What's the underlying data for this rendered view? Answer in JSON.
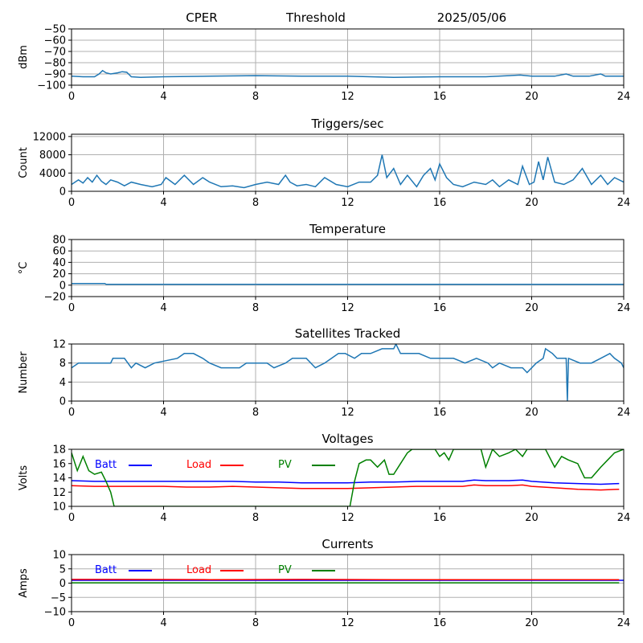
{
  "header": {
    "site": "CPER",
    "mode": "Threshold",
    "date": "2025/05/06"
  },
  "colors": {
    "series": "#1f77b4",
    "batt": "#0000ff",
    "load": "#ff0000",
    "pv": "#008000",
    "grid": "#b0b0b0"
  },
  "chart_data": [
    {
      "type": "line",
      "title": "",
      "ylabel": "dBm",
      "xlim": [
        0,
        24
      ],
      "ylim": [
        -100,
        -50
      ],
      "xticks": [
        0,
        4,
        8,
        12,
        16,
        20,
        24
      ],
      "yticks": [
        -100,
        -90,
        -80,
        -70,
        -60,
        -50
      ],
      "grid": true,
      "series": [
        {
          "x": [
            0,
            0.5,
            1.0,
            1.2,
            1.35,
            1.5,
            1.7,
            2.0,
            2.2,
            2.4,
            2.6,
            3,
            4,
            6,
            8,
            10,
            12,
            13,
            14,
            16,
            18,
            19.5,
            20,
            21,
            21.5,
            21.8,
            22.5,
            23,
            23.2,
            24
          ],
          "y": [
            -92,
            -92.5,
            -92.5,
            -90,
            -87,
            -89,
            -90,
            -89,
            -88,
            -88.5,
            -92.5,
            -93,
            -92.5,
            -92,
            -91.5,
            -92,
            -92,
            -92.5,
            -93,
            -92.5,
            -92.5,
            -91,
            -92,
            -92,
            -90,
            -92,
            -92,
            -90,
            -92,
            -92
          ]
        }
      ]
    },
    {
      "type": "line",
      "title": "Triggers/sec",
      "ylabel": "Count",
      "xlim": [
        0,
        24
      ],
      "ylim": [
        0,
        12500
      ],
      "xticks": [
        0,
        4,
        8,
        12,
        16,
        20,
        24
      ],
      "yticks": [
        0,
        4000,
        8000,
        12000
      ],
      "grid": true,
      "series": [
        {
          "x": [
            0,
            0.3,
            0.5,
            0.7,
            0.9,
            1.1,
            1.3,
            1.5,
            1.7,
            2,
            2.3,
            2.6,
            3,
            3.5,
            3.9,
            4.1,
            4.5,
            4.9,
            5.3,
            5.7,
            6,
            6.5,
            7,
            7.5,
            8,
            8.5,
            9,
            9.3,
            9.5,
            9.8,
            10.2,
            10.6,
            11,
            11.5,
            12,
            12.5,
            13,
            13.3,
            13.5,
            13.7,
            14,
            14.3,
            14.6,
            15,
            15.3,
            15.6,
            15.8,
            16,
            16.3,
            16.6,
            17,
            17.5,
            18,
            18.3,
            18.6,
            19,
            19.4,
            19.6,
            19.9,
            20.1,
            20.3,
            20.5,
            20.7,
            21,
            21.4,
            21.8,
            22.2,
            22.6,
            23,
            23.3,
            23.6,
            24
          ],
          "y": [
            1500,
            2500,
            1800,
            3000,
            2000,
            3500,
            2200,
            1500,
            2500,
            2000,
            1200,
            2000,
            1500,
            1000,
            1500,
            3000,
            1500,
            3500,
            1500,
            3000,
            2000,
            1000,
            1200,
            800,
            1500,
            2000,
            1500,
            3500,
            2000,
            1200,
            1500,
            1000,
            3000,
            1500,
            1000,
            2000,
            2000,
            3500,
            8000,
            3000,
            5000,
            1500,
            3500,
            1000,
            3500,
            5000,
            2500,
            6000,
            3000,
            1500,
            1000,
            2000,
            1500,
            2500,
            1000,
            2500,
            1500,
            5500,
            1500,
            2000,
            6500,
            2500,
            7500,
            2000,
            1500,
            2500,
            5000,
            1500,
            3500,
            1500,
            3000,
            2000
          ]
        }
      ]
    },
    {
      "type": "line",
      "title": "Temperature",
      "ylabel": "°C",
      "xlim": [
        0,
        24
      ],
      "ylim": [
        -20,
        80
      ],
      "xticks": [
        0,
        4,
        8,
        12,
        16,
        20,
        24
      ],
      "yticks": [
        -20,
        0,
        20,
        40,
        60,
        80
      ],
      "grid": true,
      "series": [
        {
          "x": [
            0,
            1.45,
            1.5,
            24
          ],
          "y": [
            3,
            3,
            1.5,
            1.5
          ]
        }
      ]
    },
    {
      "type": "line",
      "title": "Satellites Tracked",
      "ylabel": "Number",
      "xlim": [
        0,
        24
      ],
      "ylim": [
        0,
        12
      ],
      "xticks": [
        0,
        4,
        8,
        12,
        16,
        20,
        24
      ],
      "yticks": [
        0,
        4,
        8,
        12
      ],
      "grid": true,
      "series": [
        {
          "x": [
            0,
            0.3,
            1.3,
            1.7,
            1.8,
            2.3,
            2.6,
            2.8,
            3.2,
            3.6,
            4.6,
            4.9,
            5.3,
            5.7,
            6.0,
            6.5,
            7.0,
            7.3,
            7.6,
            8.2,
            8.5,
            8.8,
            9.3,
            9.6,
            10.2,
            10.6,
            11,
            11.3,
            11.6,
            11.9,
            12.3,
            12.6,
            13.0,
            13.5,
            14.0,
            14.1,
            14.3,
            14.6,
            15.1,
            15.6,
            16.1,
            16.6,
            17.1,
            17.6,
            18.1,
            18.3,
            18.6,
            19.1,
            19.6,
            19.8,
            20.2,
            20.5,
            20.6,
            20.9,
            21.1,
            21.5,
            21.55,
            21.6,
            22.1,
            22.6,
            23.0,
            23.4,
            23.6,
            23.9,
            24
          ],
          "y": [
            7,
            8,
            8,
            8,
            9,
            9,
            7,
            8,
            7,
            8,
            9,
            10,
            10,
            9,
            8,
            7,
            7,
            7,
            8,
            8,
            8,
            7,
            8,
            9,
            9,
            7,
            8,
            9,
            10,
            10,
            9,
            10,
            10,
            11,
            11,
            12,
            10,
            10,
            10,
            9,
            9,
            9,
            8,
            9,
            8,
            7,
            8,
            7,
            7,
            6,
            8,
            9,
            11,
            10,
            9,
            9,
            0,
            9,
            8,
            8,
            9,
            10,
            9,
            8,
            7
          ]
        }
      ]
    },
    {
      "type": "line",
      "title": "Voltages",
      "ylabel": "Volts",
      "xlim": [
        0,
        24
      ],
      "ylim": [
        10,
        18
      ],
      "xticks": [
        0,
        4,
        8,
        12,
        16,
        20,
        24
      ],
      "yticks": [
        10,
        12,
        14,
        16,
        18
      ],
      "grid": false,
      "legend": "top",
      "series": [
        {
          "name": "Batt",
          "color": "#0000ff",
          "x": [
            0,
            1,
            2,
            3,
            4,
            5,
            6,
            7,
            8,
            9,
            10,
            11,
            12,
            13,
            14,
            15,
            16,
            17,
            17.5,
            18,
            19,
            19.6,
            20,
            21,
            22,
            23,
            23.8
          ],
          "y": [
            13.6,
            13.5,
            13.5,
            13.5,
            13.5,
            13.5,
            13.5,
            13.5,
            13.4,
            13.4,
            13.3,
            13.3,
            13.3,
            13.4,
            13.4,
            13.5,
            13.5,
            13.5,
            13.7,
            13.6,
            13.6,
            13.7,
            13.5,
            13.3,
            13.2,
            13.1,
            13.2
          ]
        },
        {
          "name": "Load",
          "color": "#ff0000",
          "x": [
            0,
            1,
            2,
            3,
            4,
            5,
            6,
            7,
            8,
            9,
            10,
            11,
            12,
            13,
            14,
            15,
            16,
            17,
            17.5,
            18,
            19,
            19.6,
            20,
            21,
            22,
            23,
            23.8
          ],
          "y": [
            12.9,
            12.8,
            12.8,
            12.8,
            12.8,
            12.7,
            12.7,
            12.8,
            12.7,
            12.6,
            12.5,
            12.5,
            12.5,
            12.6,
            12.7,
            12.8,
            12.8,
            12.8,
            13.0,
            12.9,
            12.9,
            13.0,
            12.8,
            12.6,
            12.4,
            12.3,
            12.4
          ]
        },
        {
          "name": "PV",
          "color": "#008000",
          "x": [
            0,
            0.25,
            0.5,
            0.75,
            1.0,
            1.3,
            1.5,
            1.7,
            1.85,
            12.1,
            12.3,
            12.5,
            12.8,
            13.0,
            13.3,
            13.6,
            13.8,
            14.0,
            14.3,
            14.6,
            14.8,
            15,
            15.2,
            15.5,
            15.8,
            16.0,
            16.2,
            16.4,
            16.6,
            17.0,
            17.5,
            17.8,
            18.0,
            18.3,
            18.6,
            19.0,
            19.3,
            19.6,
            19.8,
            20.0,
            20.3,
            20.6,
            21.0,
            21.3,
            21.6,
            22.0,
            22.3,
            22.6,
            23.0,
            23.3,
            23.6,
            24
          ],
          "y": [
            17.5,
            15,
            17,
            15,
            14.5,
            14.8,
            13.5,
            12,
            10,
            10,
            13.5,
            16,
            16.5,
            16.5,
            15.5,
            16.5,
            14.5,
            14.5,
            16,
            17.5,
            18,
            18,
            18,
            18,
            18,
            17,
            17.5,
            16.5,
            18,
            18,
            18,
            18,
            15.5,
            18,
            17,
            17.5,
            18,
            17,
            18,
            18,
            18,
            18,
            15.5,
            17,
            16.5,
            16,
            14,
            14,
            15.5,
            16.5,
            17.5,
            18
          ]
        }
      ]
    },
    {
      "type": "line",
      "title": "Currents",
      "ylabel": "Amps",
      "xlim": [
        0,
        24
      ],
      "ylim": [
        -10,
        10
      ],
      "xticks": [
        0,
        4,
        8,
        12,
        16,
        20,
        24
      ],
      "yticks": [
        -10,
        -5,
        0,
        5,
        10
      ],
      "grid": true,
      "legend": "top",
      "series": [
        {
          "name": "Batt",
          "color": "#0000ff",
          "x": [
            0,
            24
          ],
          "y": [
            1.0,
            1.0
          ]
        },
        {
          "name": "Load",
          "color": "#ff0000",
          "x": [
            0,
            2,
            6,
            10,
            14,
            18,
            22,
            23.8
          ],
          "y": [
            1.3,
            1.3,
            1.2,
            1.3,
            1.2,
            1.2,
            1.2,
            1.2
          ]
        },
        {
          "name": "PV",
          "color": "#008000",
          "x": [
            0,
            6,
            12,
            18,
            23.8
          ],
          "y": [
            0.1,
            0.1,
            0.1,
            0.1,
            0.1
          ]
        }
      ]
    }
  ]
}
